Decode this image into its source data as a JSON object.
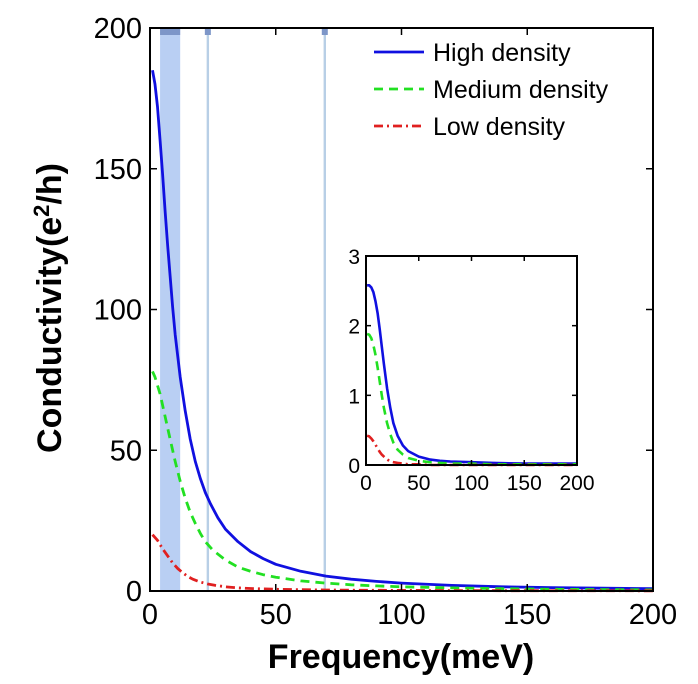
{
  "chart_data": [
    {
      "type": "line",
      "name": "main",
      "xlabel": "Frequency(meV)",
      "ylabel_base": "Conductivity(e",
      "ylabel_sup": "2",
      "ylabel_end": "/h)",
      "xlim": [
        0,
        200
      ],
      "ylim": [
        0,
        200
      ],
      "xticks": [
        0,
        50,
        100,
        150,
        200
      ],
      "yticks": [
        0,
        50,
        100,
        150,
        200
      ],
      "legend_position": "top-right",
      "shaded_band": [
        4,
        12
      ],
      "band_color": "#b9cff3",
      "vertical_lines": [
        23,
        69.5
      ],
      "vline_color": "#b8cfe6",
      "series": [
        {
          "name": "High density",
          "color": "#1010e0",
          "style": "solid",
          "x": [
            1,
            2,
            3,
            4,
            5,
            6,
            7,
            8,
            9,
            10,
            12,
            14,
            16,
            18,
            20,
            22,
            24,
            27,
            30,
            35,
            40,
            45,
            50,
            60,
            70,
            80,
            90,
            100,
            120,
            140,
            160,
            180,
            200
          ],
          "y": [
            185,
            180,
            172,
            160,
            148,
            135,
            123,
            112,
            101,
            91,
            76,
            64,
            54,
            46,
            40,
            35,
            31,
            26,
            22,
            17.5,
            14,
            11.5,
            9.5,
            7,
            5.3,
            4.2,
            3.4,
            2.8,
            2,
            1.5,
            1.2,
            1,
            0.8
          ]
        },
        {
          "name": "Medium density",
          "color": "#22e022",
          "style": "dashed",
          "x": [
            1,
            2,
            4,
            6,
            8,
            10,
            12,
            14,
            16,
            18,
            20,
            22,
            25,
            30,
            35,
            40,
            45,
            50,
            60,
            70,
            80,
            90,
            100,
            120,
            140,
            160,
            180,
            200
          ],
          "y": [
            78,
            76,
            70,
            62,
            54,
            46,
            39,
            33,
            28,
            24,
            20.5,
            17.5,
            14.5,
            11,
            8.5,
            7,
            5.8,
            4.9,
            3.6,
            2.8,
            2.2,
            1.8,
            1.5,
            1.1,
            0.8,
            0.6,
            0.5,
            0.4
          ]
        },
        {
          "name": "Low density",
          "color": "#e02020",
          "style": "dashdot",
          "x": [
            1,
            3,
            5,
            7,
            9,
            11,
            13,
            15,
            17,
            20,
            23,
            26,
            30,
            35,
            40,
            50,
            60,
            70,
            80,
            100,
            120,
            150,
            200
          ],
          "y": [
            20,
            18,
            15,
            12.5,
            10,
            8,
            6.5,
            5.2,
            4.2,
            3.2,
            2.5,
            2,
            1.5,
            1.1,
            0.9,
            0.6,
            0.45,
            0.35,
            0.3,
            0.2,
            0.15,
            0.1,
            0.06
          ]
        }
      ]
    },
    {
      "type": "line",
      "name": "inset",
      "xlim": [
        0,
        200
      ],
      "ylim": [
        0,
        3
      ],
      "xticks": [
        0,
        50,
        100,
        150,
        200
      ],
      "yticks": [
        0,
        1,
        2,
        3
      ],
      "series": [
        {
          "name": "High density",
          "color": "#1010e0",
          "style": "solid",
          "x": [
            1,
            3,
            5,
            7,
            9,
            11,
            13,
            15,
            17,
            20,
            23,
            26,
            30,
            35,
            40,
            50,
            60,
            70,
            80,
            100,
            120,
            150,
            200
          ],
          "y": [
            2.58,
            2.58,
            2.55,
            2.48,
            2.35,
            2.18,
            1.95,
            1.7,
            1.45,
            1.1,
            0.82,
            0.6,
            0.42,
            0.28,
            0.2,
            0.12,
            0.08,
            0.06,
            0.05,
            0.04,
            0.03,
            0.02,
            0.02
          ]
        },
        {
          "name": "Medium density",
          "color": "#22e022",
          "style": "dashed",
          "x": [
            1,
            3,
            5,
            7,
            9,
            11,
            13,
            15,
            17,
            20,
            23,
            26,
            30,
            35,
            40,
            50,
            60,
            70,
            80,
            100,
            120,
            150,
            200
          ],
          "y": [
            1.88,
            1.87,
            1.82,
            1.72,
            1.58,
            1.4,
            1.2,
            1.0,
            0.82,
            0.6,
            0.44,
            0.32,
            0.22,
            0.15,
            0.1,
            0.06,
            0.04,
            0.03,
            0.02,
            0.02,
            0.01,
            0.01,
            0.01
          ]
        },
        {
          "name": "Low density",
          "color": "#e02020",
          "style": "dashdot",
          "x": [
            1,
            3,
            5,
            7,
            9,
            11,
            13,
            15,
            17,
            20,
            23,
            26,
            30,
            35,
            40,
            50,
            60,
            80,
            100,
            150,
            200
          ],
          "y": [
            0.42,
            0.41,
            0.38,
            0.34,
            0.29,
            0.24,
            0.19,
            0.15,
            0.12,
            0.08,
            0.05,
            0.04,
            0.03,
            0.02,
            0.01,
            0.01,
            0.0,
            0.0,
            0.0,
            0.0,
            0.0
          ]
        }
      ]
    }
  ]
}
